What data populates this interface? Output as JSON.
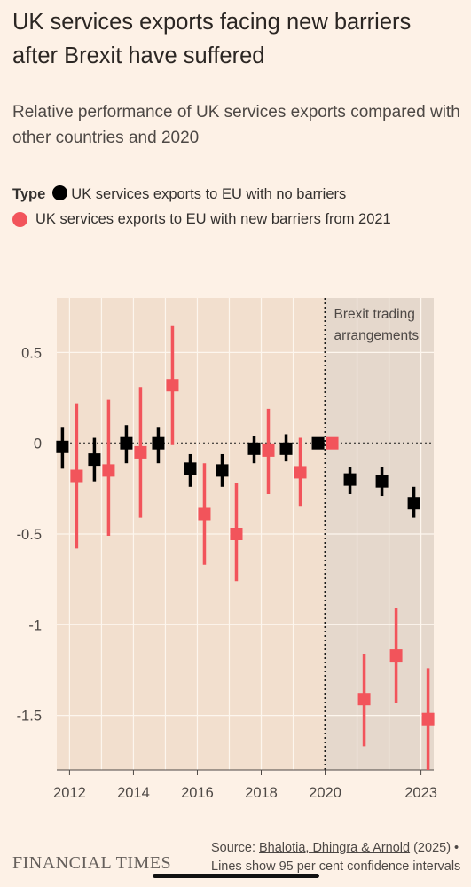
{
  "header": {
    "title": "UK services exports facing new barriers after Brexit have suffered",
    "subtitle": "Relative performance of UK services exports compared with other countries and 2020"
  },
  "legend": {
    "label": "Type",
    "items": [
      {
        "label": "UK services exports to EU with no barriers",
        "color": "#000000"
      },
      {
        "label": "UK services exports to EU with new barriers from 2021",
        "color": "#f2545b"
      }
    ]
  },
  "footer": {
    "logo": "FINANCIAL TIMES",
    "source_prefix": "Source: ",
    "source_link": "Bhalotia, Dhingra & Arnold",
    "source_rest": " (2025) • Lines show 95 per cent confidence intervals"
  },
  "chart_data": {
    "type": "scatter",
    "annotation": "Brexit trading arrangements",
    "shaded_from": 2020,
    "x_ticks": [
      "2012",
      "2014",
      "2016",
      "2018",
      "2020",
      "2023"
    ],
    "y_ticks": [
      "0.5",
      "0",
      "-0.5",
      "-1",
      "-1.5"
    ],
    "xlim": [
      2011.6,
      2023.4
    ],
    "ylim": [
      -1.8,
      0.8
    ],
    "grid": true,
    "series": [
      {
        "name": "UK services exports to EU with no barriers",
        "color": "#000000",
        "points": [
          {
            "x": 2012,
            "y": -0.02,
            "lo": -0.14,
            "hi": 0.09
          },
          {
            "x": 2013,
            "y": -0.09,
            "lo": -0.21,
            "hi": 0.03
          },
          {
            "x": 2014,
            "y": 0.0,
            "lo": -0.11,
            "hi": 0.1
          },
          {
            "x": 2015,
            "y": 0.0,
            "lo": -0.11,
            "hi": 0.09
          },
          {
            "x": 2016,
            "y": -0.14,
            "lo": -0.24,
            "hi": -0.06
          },
          {
            "x": 2017,
            "y": -0.15,
            "lo": -0.24,
            "hi": -0.06
          },
          {
            "x": 2018,
            "y": -0.03,
            "lo": -0.11,
            "hi": 0.04
          },
          {
            "x": 2019,
            "y": -0.03,
            "lo": -0.1,
            "hi": 0.05
          },
          {
            "x": 2020,
            "y": 0.0,
            "lo": 0.0,
            "hi": 0.0
          },
          {
            "x": 2021,
            "y": -0.2,
            "lo": -0.28,
            "hi": -0.13
          },
          {
            "x": 2022,
            "y": -0.21,
            "lo": -0.29,
            "hi": -0.13
          },
          {
            "x": 2023,
            "y": -0.33,
            "lo": -0.41,
            "hi": -0.24
          }
        ]
      },
      {
        "name": "UK services exports to EU with new barriers from 2021",
        "color": "#f2545b",
        "points": [
          {
            "x": 2012,
            "y": -0.18,
            "lo": -0.58,
            "hi": 0.22
          },
          {
            "x": 2013,
            "y": -0.15,
            "lo": -0.51,
            "hi": 0.24
          },
          {
            "x": 2014,
            "y": -0.05,
            "lo": -0.41,
            "hi": 0.31
          },
          {
            "x": 2015,
            "y": 0.32,
            "lo": -0.01,
            "hi": 0.65
          },
          {
            "x": 2016,
            "y": -0.39,
            "lo": -0.67,
            "hi": -0.11
          },
          {
            "x": 2017,
            "y": -0.5,
            "lo": -0.76,
            "hi": -0.22
          },
          {
            "x": 2018,
            "y": -0.04,
            "lo": -0.28,
            "hi": 0.19
          },
          {
            "x": 2019,
            "y": -0.16,
            "lo": -0.35,
            "hi": 0.03
          },
          {
            "x": 2020,
            "y": 0.0,
            "lo": 0.0,
            "hi": 0.0
          },
          {
            "x": 2021,
            "y": -1.41,
            "lo": -1.67,
            "hi": -1.16
          },
          {
            "x": 2022,
            "y": -1.17,
            "lo": -1.43,
            "hi": -0.91
          },
          {
            "x": 2023,
            "y": -1.52,
            "lo": -1.8,
            "hi": -1.24
          }
        ]
      }
    ]
  }
}
